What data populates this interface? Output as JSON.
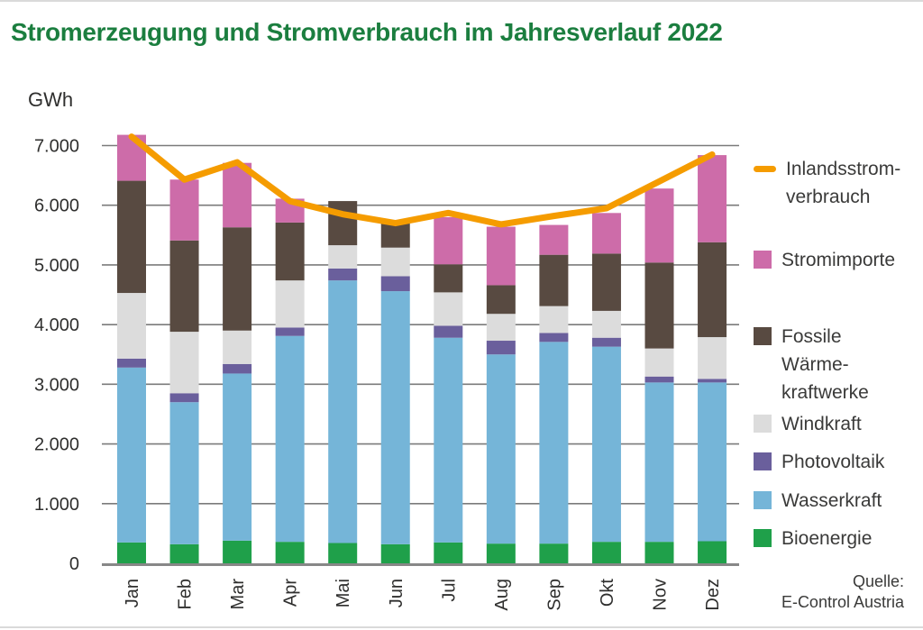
{
  "page": {
    "title": "Stromerzeugung und Stromverbrauch im Jahresverlauf 2022",
    "unit_label": "GWh",
    "source_line1": "Quelle:",
    "source_line2": "E-Control Austria"
  },
  "legend": {
    "items": [
      {
        "key": "line",
        "label": "Inlandsstrom-\nverbrauch"
      },
      {
        "key": "Stromimporte",
        "label": "Stromimporte"
      },
      {
        "key": "Fossile Wärmekraftwerke",
        "label": "Fossile\nWärme-\nkraftwerke"
      },
      {
        "key": "Windkraft",
        "label": "Windkraft"
      },
      {
        "key": "Photovoltaik",
        "label": "Photovoltaik"
      },
      {
        "key": "Wasserkraft",
        "label": "Wasserkraft"
      },
      {
        "key": "Bioenergie",
        "label": "Bioenergie"
      }
    ]
  },
  "chart_data": {
    "type": "bar",
    "subtype": "stacked-bars-with-line-overlay",
    "title": "Stromerzeugung und Stromverbrauch im Jahresverlauf 2022",
    "xlabel": "",
    "ylabel": "GWh",
    "unit": "GWh",
    "grid": true,
    "legend_position": "right",
    "categories": [
      "Jan",
      "Feb",
      "Mar",
      "Apr",
      "Mai",
      "Jun",
      "Jul",
      "Aug",
      "Sep",
      "Okt",
      "Nov",
      "Dez"
    ],
    "y_axis": {
      "min": 0,
      "max": 7000,
      "step": 1000,
      "tick_labels": [
        "0",
        "1.000",
        "2.000",
        "3.000",
        "4.000",
        "5.000",
        "6.000",
        "7.000"
      ]
    },
    "series": [
      {
        "name": "Bioenergie",
        "color": "#1fa04a",
        "values": [
          350,
          320,
          380,
          360,
          340,
          320,
          350,
          330,
          330,
          360,
          360,
          370
        ]
      },
      {
        "name": "Wasserkraft",
        "color": "#75b5d8",
        "values": [
          2930,
          2380,
          2800,
          3450,
          4400,
          4240,
          3430,
          3170,
          3380,
          3270,
          2670,
          2660
        ]
      },
      {
        "name": "Photovoltaik",
        "color": "#6a5f9c",
        "values": [
          150,
          150,
          160,
          140,
          200,
          250,
          200,
          230,
          150,
          150,
          100,
          60
        ]
      },
      {
        "name": "Windkraft",
        "color": "#dcdcdc",
        "values": [
          1100,
          1030,
          560,
          790,
          390,
          480,
          560,
          450,
          450,
          450,
          470,
          700
        ]
      },
      {
        "name": "Fossile Wärmekraftwerke",
        "color": "#584a41",
        "values": [
          1880,
          1530,
          1730,
          970,
          740,
          430,
          470,
          480,
          860,
          960,
          1440,
          1590
        ]
      },
      {
        "name": "Stromimporte",
        "color": "#cd6ca9",
        "values": [
          770,
          1020,
          1080,
          400,
          0,
          0,
          790,
          980,
          500,
          680,
          1240,
          1460
        ]
      }
    ],
    "stack_totals": [
      7180,
      6430,
      6710,
      6110,
      6070,
      5720,
      5800,
      5640,
      5670,
      5870,
      6280,
      6840
    ],
    "line_series": {
      "name": "Inlandsstromverbrauch",
      "color": "#f59c00",
      "values": [
        7150,
        6430,
        6720,
        6070,
        5850,
        5700,
        5870,
        5680,
        5820,
        5950,
        6400,
        6850
      ]
    },
    "colors": {
      "title_green": "#1b7e3f",
      "grid": "#7b7b7b",
      "axis": "#878787",
      "text": "#3a3a39"
    }
  }
}
